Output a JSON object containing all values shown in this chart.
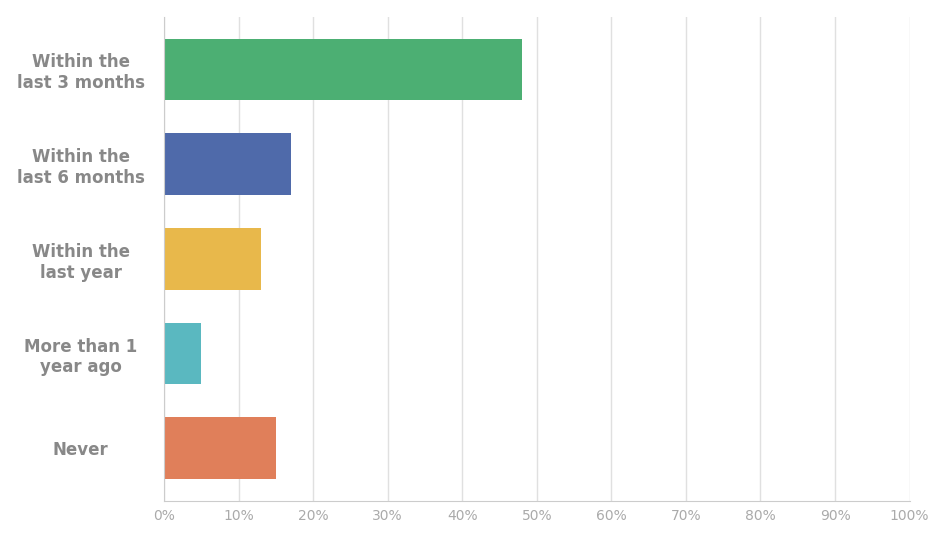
{
  "categories": [
    "Within the\nlast 3 months",
    "Within the\nlast 6 months",
    "Within the\nlast year",
    "More than 1\nyear ago",
    "Never"
  ],
  "values": [
    48,
    17,
    13,
    5,
    15
  ],
  "bar_colors": [
    "#4caf73",
    "#4f6aaa",
    "#e8b84b",
    "#5ab8c0",
    "#e07f5a"
  ],
  "background_color": "#ffffff",
  "plot_area_color": "#ffffff",
  "xlim": [
    0,
    100
  ],
  "xtick_labels": [
    "0%",
    "10%",
    "20%",
    "30%",
    "40%",
    "50%",
    "60%",
    "70%",
    "80%",
    "90%",
    "100%"
  ],
  "xtick_values": [
    0,
    10,
    20,
    30,
    40,
    50,
    60,
    70,
    80,
    90,
    100
  ],
  "grid_color": "#e0e0e0",
  "label_color": "#888888",
  "tick_label_color": "#aaaaaa",
  "bar_height": 0.65,
  "label_fontsize": 12,
  "tick_fontsize": 10,
  "label_fontweight": "bold"
}
